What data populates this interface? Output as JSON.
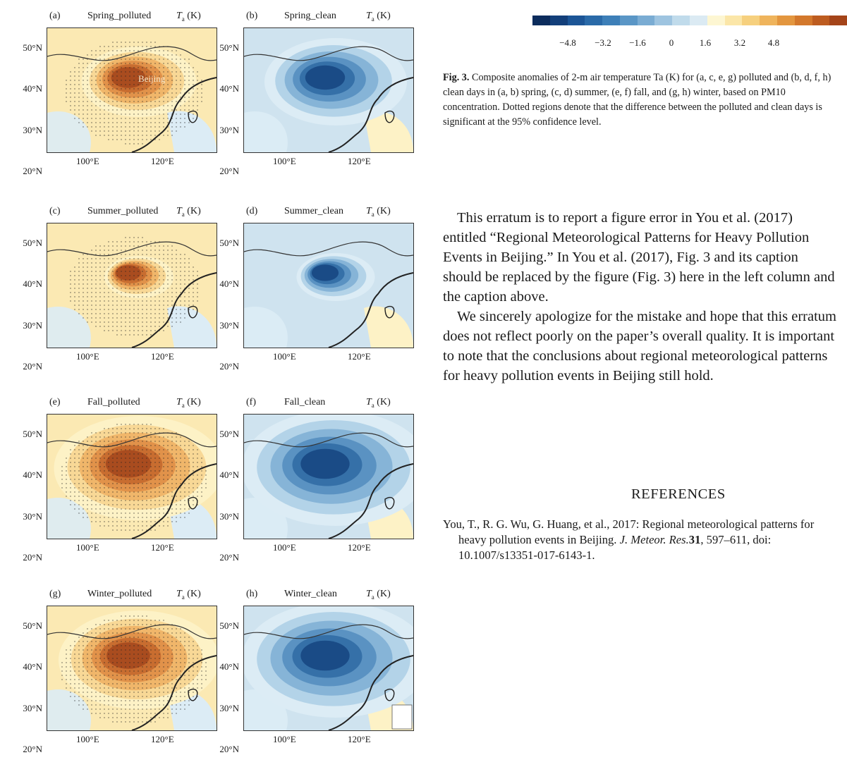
{
  "panels": [
    {
      "letter": "(a)",
      "title": "Spring_polluted",
      "unit": "(K)",
      "kind": "polluted",
      "intensity": 0.55,
      "label": "Beijing"
    },
    {
      "letter": "(b)",
      "title": "Spring_clean",
      "unit": "(K)",
      "kind": "clean",
      "intensity": 0.7
    },
    {
      "letter": "(c)",
      "title": "Summer_polluted",
      "unit": "(K)",
      "kind": "polluted",
      "intensity": 0.3
    },
    {
      "letter": "(d)",
      "title": "Summer_clean",
      "unit": "(K)",
      "kind": "clean",
      "intensity": 0.35
    },
    {
      "letter": "(e)",
      "title": "Fall_polluted",
      "unit": "(K)",
      "kind": "polluted",
      "intensity": 0.85
    },
    {
      "letter": "(f)",
      "title": "Fall_clean",
      "unit": "(K)",
      "kind": "clean",
      "intensity": 0.95
    },
    {
      "letter": "(g)",
      "title": "Winter_polluted",
      "unit": "(K)",
      "kind": "polluted",
      "intensity": 0.8
    },
    {
      "letter": "(h)",
      "title": "Winter_clean",
      "unit": "(K)",
      "kind": "clean",
      "intensity": 0.95
    }
  ],
  "axis": {
    "var_symbol": "T",
    "var_sub": "a",
    "lat_labels": [
      "50°N",
      "40°N",
      "30°N",
      "20°N"
    ],
    "lon_labels": [
      "100°E",
      "120°E"
    ]
  },
  "colorbar": {
    "ticks": [
      "−4.8",
      "−3.2",
      "−1.6",
      "0",
      "1.6",
      "3.2",
      "4.8"
    ],
    "colors": [
      "#0c2c5c",
      "#133f7a",
      "#1c5596",
      "#2a6aa8",
      "#3d7fb8",
      "#5a96c6",
      "#7aacd3",
      "#9ec4e0",
      "#c0dbeb",
      "#dbeaf3",
      "#fdf6d2",
      "#fbe6a8",
      "#f6d07e",
      "#efb45c",
      "#e3963f",
      "#d3782c",
      "#bd5c20",
      "#a44419"
    ]
  },
  "caption": {
    "label": "Fig. 3.",
    "text": "Composite anomalies of 2-m air temperature Ta (K) for (a, c, e, g) polluted and (b, d, f, h) clean days in (a, b) spring, (c, d) summer, (e, f) fall, and (g, h) winter, based on PM10 concentration. Dotted regions denote that the difference between the polluted and clean days is significant at the 95% confidence level."
  },
  "body": [
    "This erratum is to report a figure error in You et al. (2017) entitled “Regional Meteorological Patterns for Heavy Pollution Events in Beijing.” In You et al. (2017), Fig. 3 and its caption should be replaced by the figure (Fig. 3) here in the left column and the caption above.",
    "We sincerely apologize for the mistake and hope that this erratum does not reflect poorly on the paper’s overall quality. It is important to note that the conclusions about regional meteorological patterns for heavy pollution events in Beijing still hold."
  ],
  "references": {
    "heading": "REFERENCES",
    "authors": "You, T., R. G. Wu, G. Huang, et al., 2017: Regional meteorological patterns for heavy pollution events in Beijing.",
    "journal": "J. Meteor. Res.",
    "volume": "31",
    "rest": ", 597–611, doi: 10.1007/s13351-017-6143-1."
  }
}
